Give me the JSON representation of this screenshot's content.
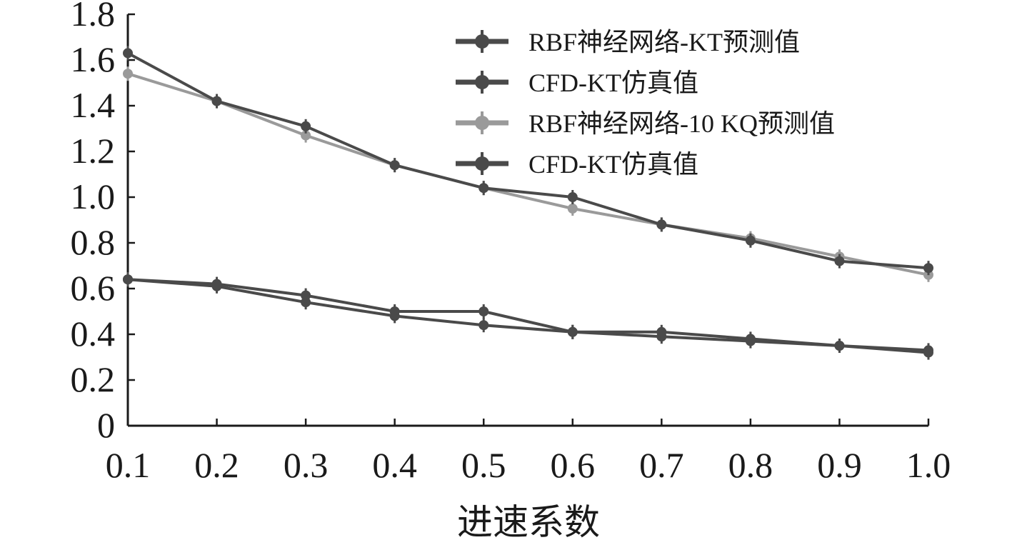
{
  "chart_data": {
    "type": "line",
    "xlabel": "进速系数",
    "ylabel": "",
    "xlim": [
      0.1,
      1.0
    ],
    "ylim": [
      0,
      1.8
    ],
    "x_ticks": [
      "0.1",
      "0.2",
      "0.3",
      "0.4",
      "0.5",
      "0.6",
      "0.7",
      "0.8",
      "0.9",
      "1.0"
    ],
    "y_ticks": [
      "0",
      "0.2",
      "0.4",
      "0.6",
      "0.8",
      "1.0",
      "1.2",
      "1.4",
      "1.6",
      "1.8"
    ],
    "x": [
      0.1,
      0.2,
      0.3,
      0.4,
      0.5,
      0.6,
      0.7,
      0.8,
      0.9,
      1.0
    ],
    "grid": false,
    "legend_position": "top-right",
    "series": [
      {
        "name": "RBF神经网络-KT预测值",
        "color": "#4a4a4a",
        "values": [
          0.64,
          0.61,
          0.54,
          0.48,
          0.44,
          0.41,
          0.39,
          0.37,
          0.35,
          0.33
        ]
      },
      {
        "name": "CFD-KT仿真值",
        "color": "#4a4a4a",
        "values": [
          0.64,
          0.62,
          0.57,
          0.5,
          0.5,
          0.41,
          0.41,
          0.38,
          0.35,
          0.32
        ]
      },
      {
        "name": "RBF神经网络-10 KQ预测值",
        "color": "#9a9a9a",
        "values": [
          1.54,
          1.42,
          1.27,
          1.14,
          1.04,
          0.95,
          0.88,
          0.82,
          0.74,
          0.66
        ]
      },
      {
        "name": "CFD-KT仿真值",
        "color": "#4a4a4a",
        "values": [
          1.63,
          1.42,
          1.31,
          1.14,
          1.04,
          1.0,
          0.88,
          0.81,
          0.72,
          0.69
        ]
      }
    ]
  }
}
